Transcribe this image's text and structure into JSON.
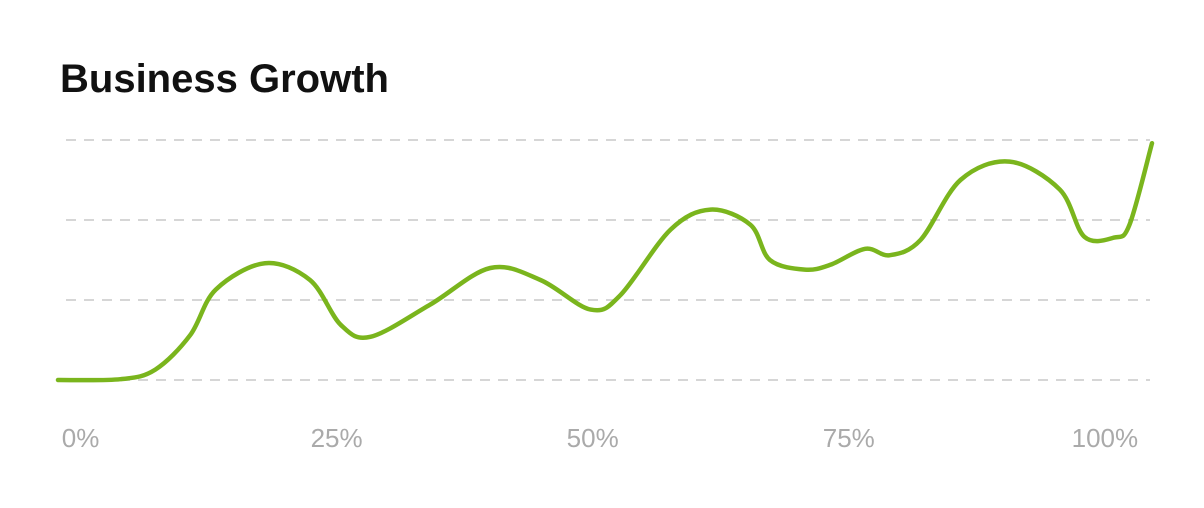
{
  "chart_data": {
    "type": "line",
    "title": "Business Growth",
    "x": [
      -2.2,
      3.9,
      7.3,
      10.7,
      13.2,
      18.0,
      22.4,
      25.4,
      28.3,
      34.1,
      40.0,
      44.9,
      49.8,
      52.7,
      57.6,
      61.5,
      65.4,
      67.3,
      70.7,
      73.2,
      76.6,
      79.0,
      82.0,
      85.9,
      90.7,
      95.6,
      98.0,
      100.9,
      102.4,
      104.6
    ],
    "series": [
      {
        "color": "#7ab51d",
        "values": [
          0,
          0.01,
          0.13,
          0.56,
          1.13,
          1.46,
          1.25,
          0.69,
          0.54,
          0.94,
          1.4,
          1.25,
          0.88,
          1.06,
          1.88,
          2.13,
          1.94,
          1.5,
          1.38,
          1.44,
          1.64,
          1.56,
          1.75,
          2.5,
          2.73,
          2.38,
          1.79,
          1.78,
          1.94,
          2.96
        ]
      }
    ],
    "xlim": [
      -2.2,
      104.6
    ],
    "xticks": [
      {
        "value": 0,
        "label": "0%"
      },
      {
        "value": 25,
        "label": "25%"
      },
      {
        "value": 50,
        "label": "50%"
      },
      {
        "value": 75,
        "label": "75%"
      },
      {
        "value": 100,
        "label": "100%"
      }
    ],
    "ylim": [
      0,
      3
    ],
    "yticks": [
      0,
      1,
      2,
      3
    ],
    "grid": true
  }
}
